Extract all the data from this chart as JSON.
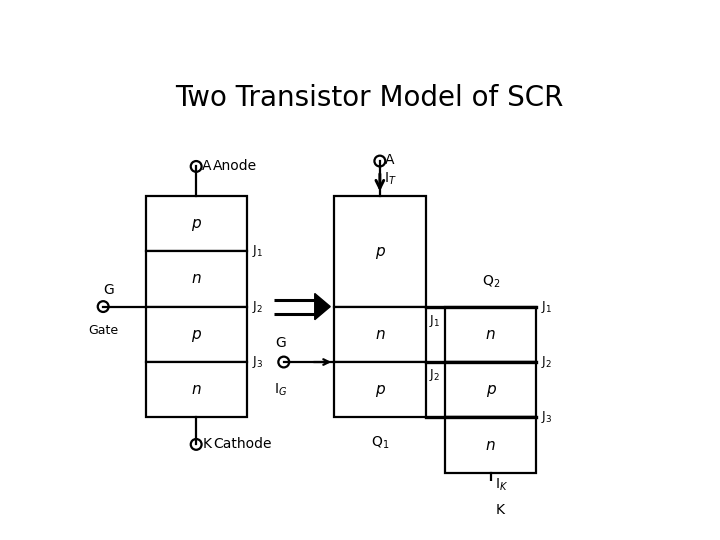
{
  "title": "Two Transistor Model of SCR",
  "title_fontsize": 20,
  "bg_color": "#ffffff",
  "fg_color": "#000000",
  "lw": 1.6,
  "left_layers": [
    "p",
    "n",
    "p",
    "n"
  ],
  "q1_layers": [
    "p",
    "n",
    "p"
  ],
  "q2_layers": [
    "n",
    "p"
  ],
  "q2_bottom": "n"
}
